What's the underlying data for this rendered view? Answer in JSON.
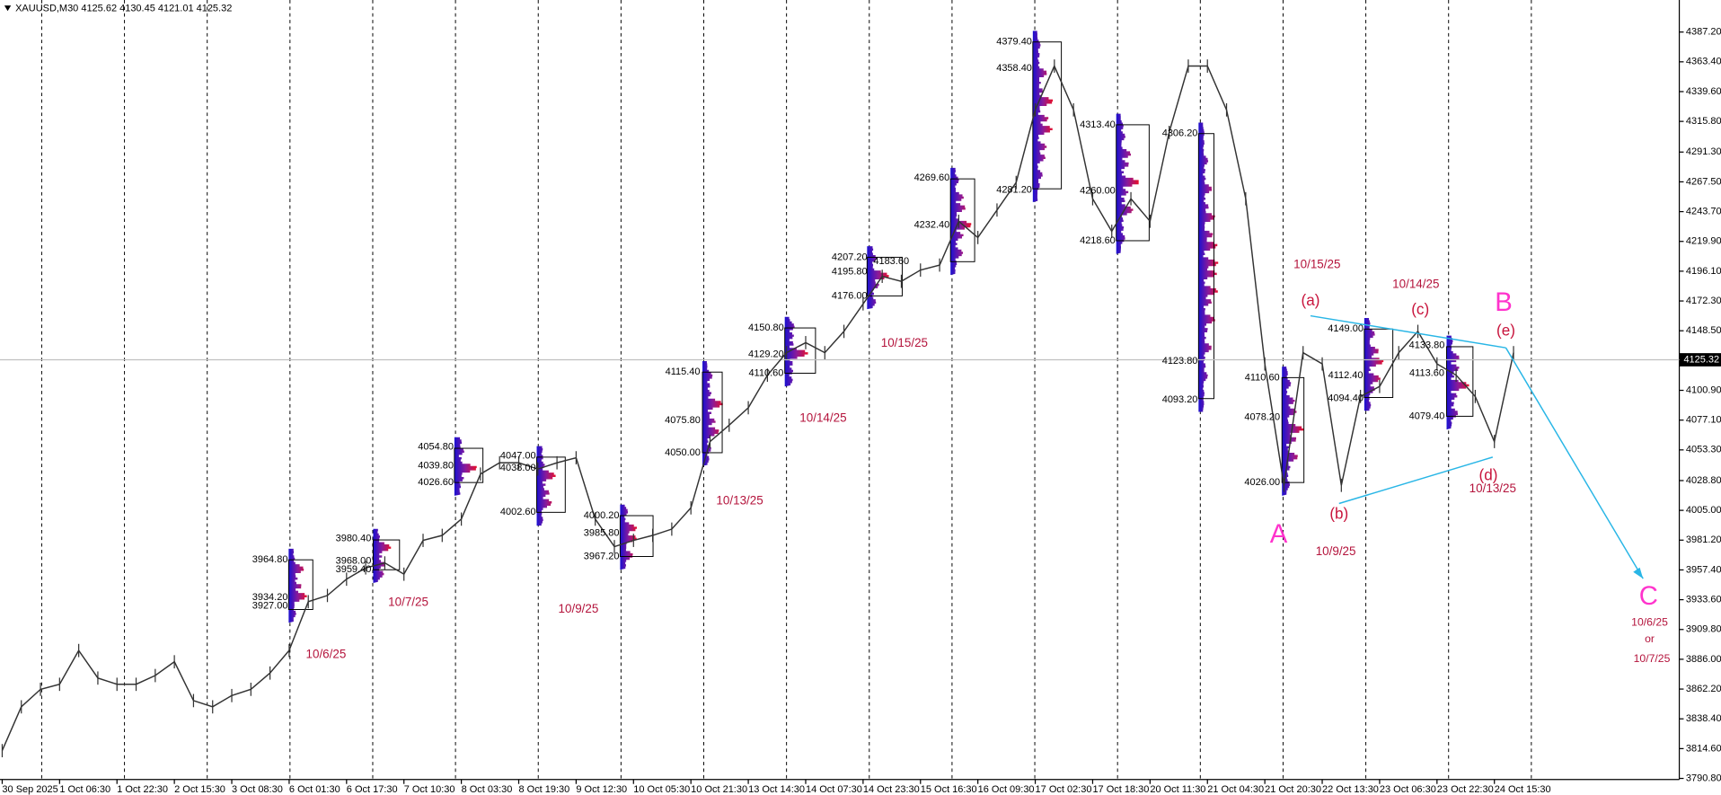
{
  "chart_data": {
    "type": "line",
    "title": "XAUUSD,M30  4125.62 4130.45 4121.01 4125.32",
    "color": "#333333",
    "categories": [
      "30 Sep 2025",
      null,
      null,
      "1 Oct 06:30",
      null,
      null,
      "1 Oct 22:30",
      null,
      null,
      "2 Oct 15:30",
      null,
      null,
      "3 Oct 08:30",
      null,
      null,
      "6 Oct 01:30",
      null,
      null,
      "6 Oct 17:30",
      null,
      null,
      "7 Oct 10:30",
      null,
      null,
      "8 Oct 03:30",
      null,
      null,
      "8 Oct 19:30",
      null,
      null,
      "9 Oct 12:30",
      null,
      null,
      "10 Oct 05:30",
      null,
      null,
      "10 Oct 21:30",
      null,
      null,
      "13 Oct 14:30",
      null,
      null,
      "14 Oct 07:30",
      null,
      null,
      "14 Oct 23:30",
      null,
      null,
      "15 Oct 16:30",
      null,
      null,
      "16 Oct 09:30",
      null,
      null,
      "17 Oct 02:30",
      null,
      null,
      "17 Oct 18:30",
      null,
      null,
      "20 Oct 11:30",
      null,
      null,
      "21 Oct 04:30",
      null,
      null,
      "21 Oct 20:30",
      null,
      null,
      "22 Oct 13:30",
      null,
      null,
      "23 Oct 06:30",
      null,
      null,
      "23 Oct 22:30",
      null,
      null,
      "24 Oct 15:30",
      null
    ],
    "values": [
      3813,
      3848,
      3862,
      3866,
      3893,
      3871,
      3866,
      3866,
      3873,
      3884,
      3853,
      3848,
      3857,
      3862,
      3875,
      3893,
      3932,
      3937,
      3950,
      3959,
      3963,
      3954,
      3981,
      3985,
      3998,
      4034,
      4043,
      4043,
      4038,
      4043,
      4047,
      3998,
      3976,
      3981,
      3985,
      3990,
      4007,
      4060,
      4073,
      4087,
      4113,
      4131,
      4139,
      4131,
      4148,
      4170,
      4192,
      4188,
      4197,
      4201,
      4236,
      4223,
      4245,
      4267,
      4325,
      4360,
      4325,
      4254,
      4228,
      4254,
      4236,
      4307,
      4360,
      4360,
      4325,
      4254,
      4122,
      4025,
      4131,
      4122,
      4025,
      4096,
      4104,
      4131,
      4148,
      4122,
      4113,
      4096,
      4060,
      4131
    ],
    "ylim": [
      3789.9,
      4412.8
    ],
    "yticks": [
      {
        "value": 4387.2,
        "label": "4387.20"
      },
      {
        "value": 4363.4,
        "label": "4363.40"
      },
      {
        "value": 4339.6,
        "label": "4339.60"
      },
      {
        "value": 4315.8,
        "label": "4315.80"
      },
      {
        "value": 4291.3,
        "label": "4291.30"
      },
      {
        "value": 4267.5,
        "label": "4267.50"
      },
      {
        "value": 4243.7,
        "label": "4243.70"
      },
      {
        "value": 4219.9,
        "label": "4219.90"
      },
      {
        "value": 4196.1,
        "label": "4196.10"
      },
      {
        "value": 4172.3,
        "label": "4172.30"
      },
      {
        "value": 4148.5,
        "label": "4148.50"
      },
      {
        "value": 4100.9,
        "label": "4100.90"
      },
      {
        "value": 4077.1,
        "label": "4077.10"
      },
      {
        "value": 4053.3,
        "label": "4053.30"
      },
      {
        "value": 4028.8,
        "label": "4028.80"
      },
      {
        "value": 4005.0,
        "label": "4005.00"
      },
      {
        "value": 3981.2,
        "label": "3981.20"
      },
      {
        "value": 3957.4,
        "label": "3957.40"
      },
      {
        "value": 3933.6,
        "label": "3933.60"
      },
      {
        "value": 3909.8,
        "label": "3909.80"
      },
      {
        "value": 3886.0,
        "label": "3886.00"
      },
      {
        "value": 3862.2,
        "label": "3862.20"
      },
      {
        "value": 3838.4,
        "label": "3838.40"
      },
      {
        "value": 3814.6,
        "label": "3814.60"
      },
      {
        "value": 3790.8,
        "label": "3790.80"
      }
    ],
    "last_price": {
      "value": 4125.32,
      "label": "4125.32"
    },
    "profile_labels": [
      "3964.80",
      "3934.20",
      "3927.00",
      "3980.40",
      "3968.00",
      "3959.40",
      "4054.80",
      "4039.80",
      "4026.60",
      "4047.00",
      "4038.00",
      "4002.60",
      "4000.20",
      "3985.80",
      "3967.20",
      "4115.40",
      "4075.80",
      "4050.00",
      "4150.80",
      "4129.20",
      "4110.60",
      "4207.20",
      "4195.80",
      "4176.00",
      "4183.60",
      "4269.60",
      "4232.40",
      "4379.40",
      "4358.40",
      "4281.20",
      "4313.40",
      "4260.00",
      "4218.60",
      "4306.20",
      "4123.80",
      "4093.20",
      "4110.60",
      "4078.20",
      "4026.00",
      "4149.00",
      "4112.40",
      "4094.40",
      "4133.80",
      "4113.60",
      "4079.40"
    ],
    "date_notes": [
      "10/6/25",
      "10/7/25",
      "10/9/25",
      "10/13/25",
      "10/14/25",
      "10/15/25",
      "10/15/25",
      "10/14/25",
      "10/9/25",
      "10/13/25"
    ],
    "wave_labels": [
      "(a)",
      "(b)",
      "(c)",
      "(d)",
      "(e)"
    ],
    "major_labels": [
      "A",
      "B",
      "C"
    ],
    "target_notes": [
      "10/6/25",
      "or",
      "10/7/25"
    ]
  }
}
